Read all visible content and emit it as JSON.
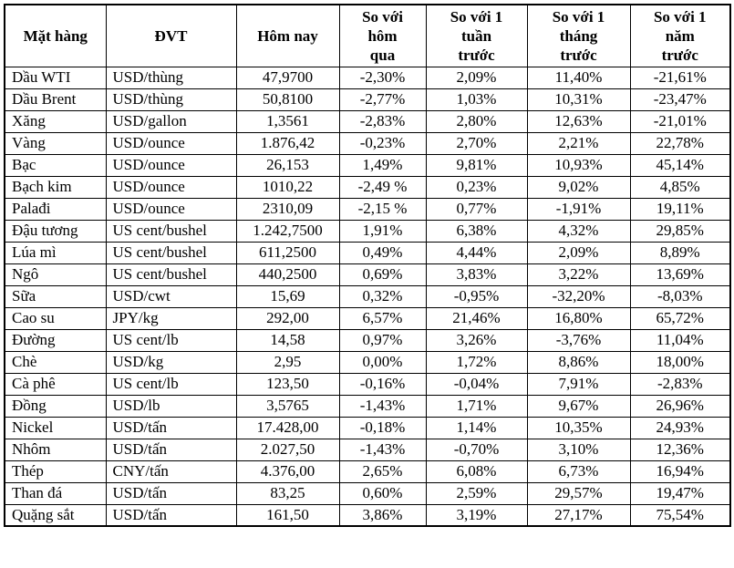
{
  "colors": {
    "border": "#000000",
    "text": "#000000",
    "background": "#ffffff"
  },
  "chart_data": {
    "type": "table",
    "columns": [
      "Mặt hàng",
      "ĐVT",
      "Hôm nay",
      "So với\nhôm\nqua",
      "So với 1\ntuần\ntrước",
      "So với 1\ntháng\ntrước",
      "So với 1\nnăm\ntrước"
    ],
    "rows": [
      [
        "Dầu WTI",
        "USD/thùng",
        "47,9700",
        "-2,30%",
        "2,09%",
        "11,40%",
        "-21,61%"
      ],
      [
        "Dầu Brent",
        "USD/thùng",
        "50,8100",
        "-2,77%",
        "1,03%",
        "10,31%",
        "-23,47%"
      ],
      [
        "Xăng",
        "USD/gallon",
        "1,3561",
        "-2,83%",
        "2,80%",
        "12,63%",
        "-21,01%"
      ],
      [
        "Vàng",
        "USD/ounce",
        "1.876,42",
        "-0,23%",
        "2,70%",
        "2,21%",
        "22,78%"
      ],
      [
        "Bạc",
        "USD/ounce",
        "26,153",
        "1,49%",
        "9,81%",
        "10,93%",
        "45,14%"
      ],
      [
        "Bạch kim",
        "USD/ounce",
        "1010,22",
        "-2,49 %",
        "0,23%",
        "9,02%",
        "4,85%"
      ],
      [
        "Palađi",
        "USD/ounce",
        "2310,09",
        "-2,15 %",
        "0,77%",
        "-1,91%",
        "19,11%"
      ],
      [
        "Đậu tương",
        "US cent/bushel",
        "1.242,7500",
        "1,91%",
        "6,38%",
        "4,32%",
        "29,85%"
      ],
      [
        "Lúa mì",
        "US cent/bushel",
        "611,2500",
        "0,49%",
        "4,44%",
        "2,09%",
        "8,89%"
      ],
      [
        "Ngô",
        "US cent/bushel",
        "440,2500",
        "0,69%",
        "3,83%",
        "3,22%",
        "13,69%"
      ],
      [
        "Sữa",
        "USD/cwt",
        "15,69",
        "0,32%",
        "-0,95%",
        "-32,20%",
        "-8,03%"
      ],
      [
        "Cao su",
        "JPY/kg",
        "292,00",
        "6,57%",
        "21,46%",
        "16,80%",
        "65,72%"
      ],
      [
        "Đường",
        "US cent/lb",
        "14,58",
        "0,97%",
        "3,26%",
        "-3,76%",
        "11,04%"
      ],
      [
        "Chè",
        "USD/kg",
        "2,95",
        "0,00%",
        "1,72%",
        "8,86%",
        "18,00%"
      ],
      [
        "Cà phê",
        "US cent/lb",
        "123,50",
        "-0,16%",
        "-0,04%",
        "7,91%",
        "-2,83%"
      ],
      [
        "Đồng",
        "USD/lb",
        "3,5765",
        "-1,43%",
        "1,71%",
        "9,67%",
        "26,96%"
      ],
      [
        "Nickel",
        "USD/tấn",
        "17.428,00",
        "-0,18%",
        "1,14%",
        "10,35%",
        "24,93%"
      ],
      [
        "Nhôm",
        "USD/tấn",
        "2.027,50",
        "-1,43%",
        "-0,70%",
        "3,10%",
        "12,36%"
      ],
      [
        "Thép",
        "CNY/tấn",
        "4.376,00",
        "2,65%",
        "6,08%",
        "6,73%",
        "16,94%"
      ],
      [
        "Than đá",
        "USD/tấn",
        "83,25",
        "0,60%",
        "2,59%",
        "29,57%",
        "19,47%"
      ],
      [
        "Quặng sắt",
        "USD/tấn",
        "161,50",
        "3,86%",
        "3,19%",
        "27,17%",
        "75,54%"
      ]
    ]
  }
}
